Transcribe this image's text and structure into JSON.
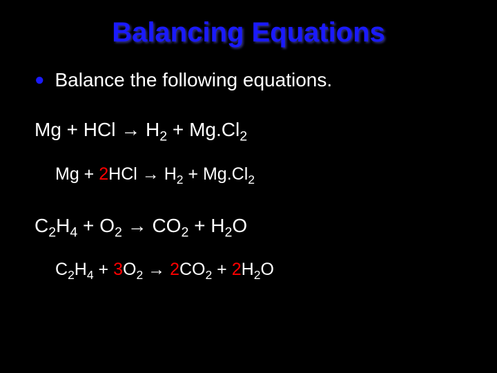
{
  "slide": {
    "title": "Balancing Equations",
    "bullet_text": "Balance the following equations.",
    "background_color": "#000000",
    "title_color": "#1a1aff",
    "text_color": "#ffffff",
    "highlight_color": "#ff0000",
    "bullet_color": "#1a1aff",
    "title_fontsize": 40,
    "body_fontsize": 28,
    "sub_fontsize": 25,
    "equations": [
      {
        "type": "unbalanced",
        "parts": [
          {
            "text": "Mg + HCl ",
            "sub": ""
          },
          {
            "text": "→",
            "arrow": true
          },
          {
            "text": " H",
            "sub": "2"
          },
          {
            "text": " + Mg.Cl",
            "sub": "2"
          }
        ]
      },
      {
        "type": "balanced",
        "parts": [
          {
            "text": "Mg + ",
            "sub": ""
          },
          {
            "text": "2",
            "red": true
          },
          {
            "text": "HCl ",
            "sub": ""
          },
          {
            "text": "→",
            "arrow": true
          },
          {
            "text": " H",
            "sub": "2"
          },
          {
            "text": " + Mg.Cl",
            "sub": "2"
          }
        ]
      },
      {
        "type": "unbalanced",
        "parts": [
          {
            "text": "C",
            "sub": "2"
          },
          {
            "text": "H",
            "sub": "4"
          },
          {
            "text": " + O",
            "sub": "2"
          },
          {
            "text": " ",
            "sub": ""
          },
          {
            "text": "→",
            "arrow": true
          },
          {
            "text": " CO",
            "sub": "2"
          },
          {
            "text": " + H",
            "sub": "2"
          },
          {
            "text": "O",
            "sub": ""
          }
        ]
      },
      {
        "type": "balanced",
        "parts": [
          {
            "text": "C",
            "sub": "2"
          },
          {
            "text": "H",
            "sub": "4"
          },
          {
            "text": " + ",
            "sub": ""
          },
          {
            "text": "3",
            "red": true
          },
          {
            "text": "O",
            "sub": "2"
          },
          {
            "text": " ",
            "sub": ""
          },
          {
            "text": "→",
            "arrow": true
          },
          {
            "text": " ",
            "sub": ""
          },
          {
            "text": "2",
            "red": true
          },
          {
            "text": "CO",
            "sub": "2"
          },
          {
            "text": " + ",
            "sub": ""
          },
          {
            "text": "2",
            "red": true
          },
          {
            "text": "H",
            "sub": "2"
          },
          {
            "text": "O",
            "sub": ""
          }
        ]
      }
    ]
  }
}
